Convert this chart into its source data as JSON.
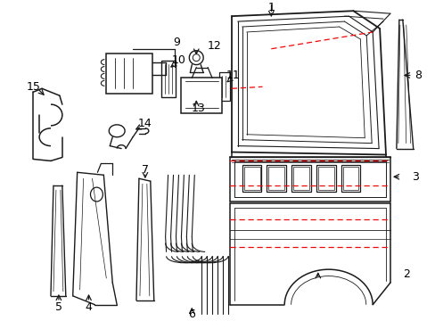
{
  "background_color": "#ffffff",
  "line_color": "#1a1a1a",
  "red_dashed_color": "#ff0000",
  "label_color": "#000000",
  "figsize": [
    4.89,
    3.6
  ],
  "dpi": 100
}
